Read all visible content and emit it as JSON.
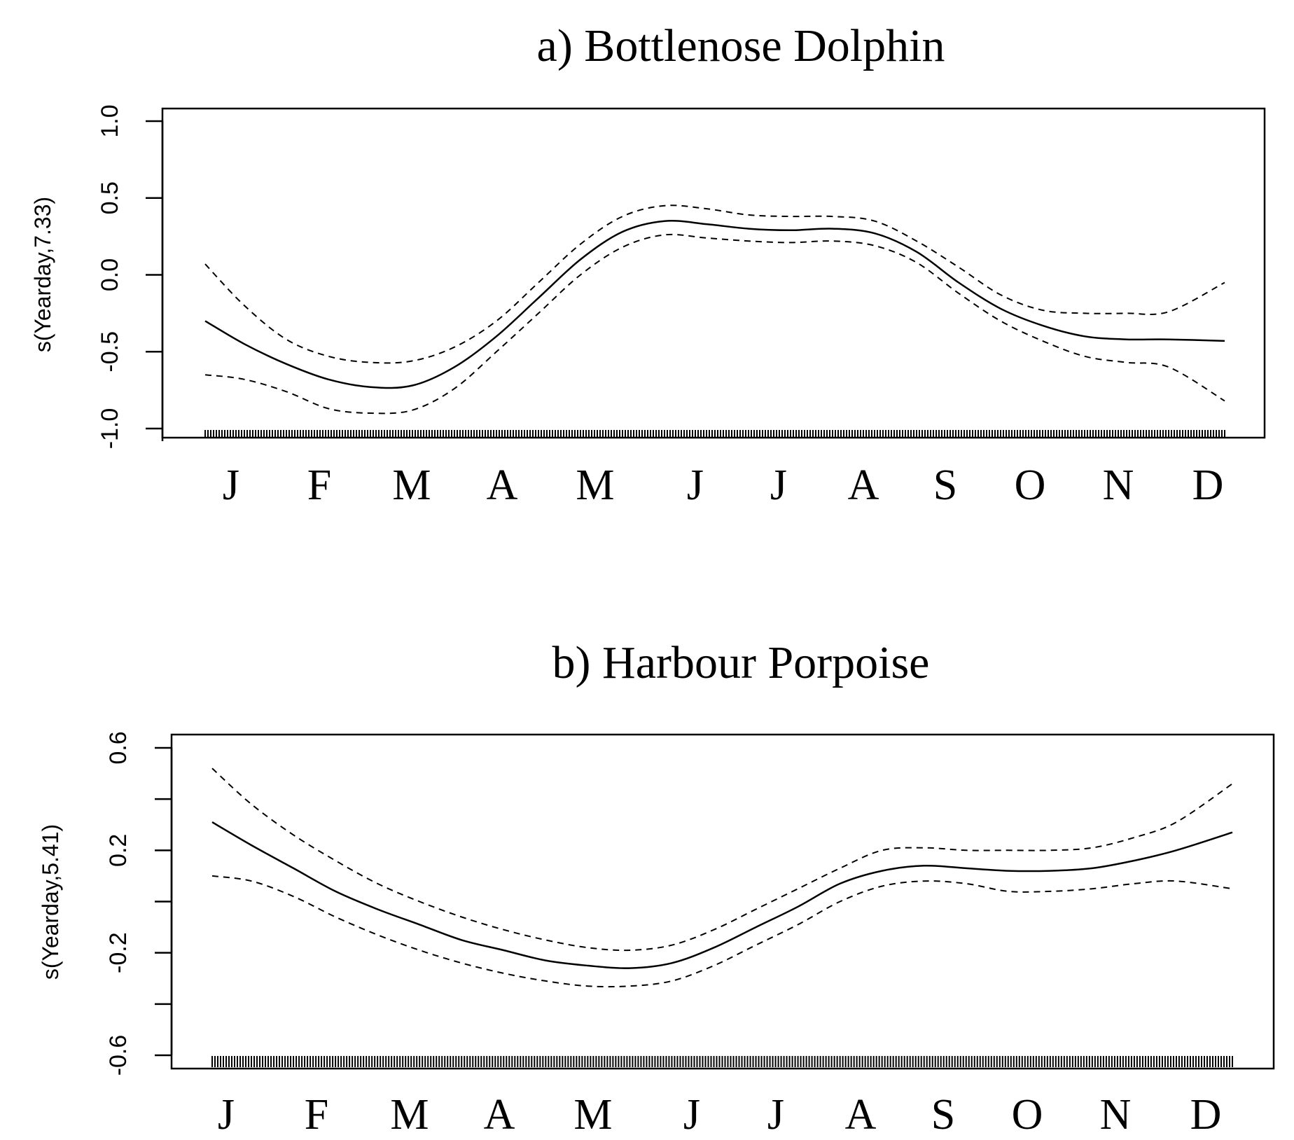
{
  "chart_data": [
    {
      "type": "line",
      "title": "a) Bottlenose Dolphin",
      "xlabel": "",
      "ylabel": "s(Yearday,7.33)",
      "xlim": [
        1,
        365
      ],
      "ylim": [
        -1.0,
        1.0
      ],
      "yticks": [
        "-1.0",
        "-0.5",
        "0.0",
        "0.5",
        "1.0"
      ],
      "ytick_values": [
        -1.0,
        -0.5,
        0.0,
        0.5,
        1.0
      ],
      "month_labels": [
        "J",
        "F",
        "M",
        "A",
        "M",
        "J",
        "J",
        "A",
        "S",
        "O",
        "N",
        "D"
      ],
      "rug": true,
      "series": [
        {
          "role": "fit",
          "style": "solid",
          "x": [
            1,
            15,
            30,
            45,
            60,
            75,
            90,
            105,
            120,
            135,
            150,
            165,
            180,
            195,
            210,
            225,
            240,
            255,
            270,
            285,
            300,
            315,
            330,
            345,
            365
          ],
          "y": [
            -0.3,
            -0.45,
            -0.58,
            -0.68,
            -0.73,
            -0.72,
            -0.6,
            -0.4,
            -0.15,
            0.1,
            0.28,
            0.35,
            0.33,
            0.3,
            0.29,
            0.3,
            0.27,
            0.15,
            -0.05,
            -0.22,
            -0.33,
            -0.4,
            -0.42,
            -0.42,
            -0.43
          ]
        },
        {
          "role": "upper",
          "style": "dashed",
          "x": [
            1,
            15,
            30,
            45,
            60,
            75,
            90,
            105,
            120,
            135,
            150,
            165,
            180,
            195,
            210,
            225,
            240,
            255,
            270,
            285,
            300,
            315,
            330,
            345,
            365
          ],
          "y": [
            0.07,
            -0.2,
            -0.42,
            -0.53,
            -0.57,
            -0.56,
            -0.47,
            -0.3,
            -0.05,
            0.2,
            0.38,
            0.45,
            0.43,
            0.39,
            0.38,
            0.38,
            0.35,
            0.22,
            0.05,
            -0.13,
            -0.23,
            -0.25,
            -0.25,
            -0.24,
            -0.05
          ]
        },
        {
          "role": "lower",
          "style": "dashed",
          "x": [
            1,
            15,
            30,
            45,
            60,
            75,
            90,
            105,
            120,
            135,
            150,
            165,
            180,
            195,
            210,
            225,
            240,
            255,
            270,
            285,
            300,
            315,
            330,
            345,
            365
          ],
          "y": [
            -0.65,
            -0.68,
            -0.76,
            -0.87,
            -0.9,
            -0.88,
            -0.74,
            -0.5,
            -0.25,
            0.0,
            0.18,
            0.26,
            0.24,
            0.22,
            0.21,
            0.22,
            0.19,
            0.08,
            -0.12,
            -0.3,
            -0.43,
            -0.53,
            -0.57,
            -0.6,
            -0.82
          ]
        }
      ]
    },
    {
      "type": "line",
      "title": "b) Harbour Porpoise",
      "xlabel": "",
      "ylabel": "s(Yearday,5.41)",
      "xlim": [
        1,
        365
      ],
      "ylim": [
        -0.6,
        0.6
      ],
      "yticks": [
        "-0.6",
        "-0.2",
        "0.2",
        "0.6"
      ],
      "ytick_values": [
        -0.6,
        -0.4,
        -0.2,
        0.0,
        0.2,
        0.4,
        0.6
      ],
      "month_labels": [
        "J",
        "F",
        "M",
        "A",
        "M",
        "J",
        "J",
        "A",
        "S",
        "O",
        "N",
        "D"
      ],
      "rug": true,
      "series": [
        {
          "role": "fit",
          "style": "solid",
          "x": [
            1,
            15,
            30,
            45,
            60,
            75,
            90,
            105,
            120,
            135,
            150,
            165,
            180,
            195,
            210,
            225,
            240,
            255,
            270,
            285,
            300,
            315,
            330,
            345,
            365
          ],
          "y": [
            0.31,
            0.22,
            0.13,
            0.04,
            -0.03,
            -0.09,
            -0.15,
            -0.19,
            -0.23,
            -0.25,
            -0.26,
            -0.24,
            -0.18,
            -0.1,
            -0.02,
            0.07,
            0.12,
            0.14,
            0.13,
            0.12,
            0.12,
            0.13,
            0.16,
            0.2,
            0.27
          ]
        },
        {
          "role": "upper",
          "style": "dashed",
          "x": [
            1,
            15,
            30,
            45,
            60,
            75,
            90,
            105,
            120,
            135,
            150,
            165,
            180,
            195,
            210,
            225,
            240,
            255,
            270,
            285,
            300,
            315,
            330,
            345,
            365
          ],
          "y": [
            0.52,
            0.38,
            0.26,
            0.16,
            0.07,
            0.0,
            -0.06,
            -0.11,
            -0.15,
            -0.18,
            -0.19,
            -0.17,
            -0.11,
            -0.03,
            0.05,
            0.13,
            0.2,
            0.21,
            0.2,
            0.2,
            0.2,
            0.21,
            0.25,
            0.31,
            0.46
          ]
        },
        {
          "role": "lower",
          "style": "dashed",
          "x": [
            1,
            15,
            30,
            45,
            60,
            75,
            90,
            105,
            120,
            135,
            150,
            165,
            180,
            195,
            210,
            225,
            240,
            255,
            270,
            285,
            300,
            315,
            330,
            345,
            365
          ],
          "y": [
            0.1,
            0.08,
            0.02,
            -0.06,
            -0.13,
            -0.19,
            -0.24,
            -0.28,
            -0.31,
            -0.33,
            -0.33,
            -0.31,
            -0.25,
            -0.17,
            -0.09,
            0.0,
            0.06,
            0.08,
            0.07,
            0.04,
            0.04,
            0.05,
            0.07,
            0.08,
            0.05
          ]
        }
      ]
    }
  ]
}
